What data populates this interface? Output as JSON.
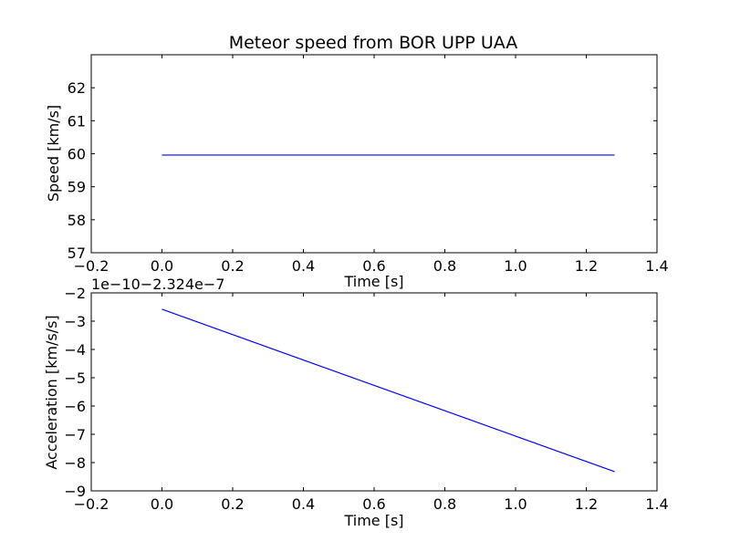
{
  "colors": {
    "line": "#0000ff",
    "axes": "#000000",
    "background": "#ffffff"
  },
  "chart_data": [
    {
      "type": "line",
      "title": "Meteor speed from  BOR UPP UAA",
      "xlabel": "Time [s]",
      "ylabel": "Speed [km/s]",
      "xlim": [
        -0.2,
        1.4
      ],
      "ylim": [
        57,
        63
      ],
      "x_ticks": [
        -0.2,
        0.0,
        0.2,
        0.4,
        0.6,
        0.8,
        1.0,
        1.2,
        1.4
      ],
      "x_tick_labels": [
        "−0.2",
        "0.0",
        "0.2",
        "0.4",
        "0.6",
        "0.8",
        "1.0",
        "1.2",
        "1.4"
      ],
      "y_ticks": [
        57,
        58,
        59,
        60,
        61,
        62
      ],
      "y_tick_labels": [
        "57",
        "58",
        "59",
        "60",
        "61",
        "62"
      ],
      "grid": false,
      "series": [
        {
          "x": [
            0.0,
            1.28
          ],
          "y": [
            59.96,
            59.96
          ]
        }
      ]
    },
    {
      "type": "line",
      "xlabel": "Time [s]",
      "ylabel": "Acceleration [km/s/s]",
      "offset_text": "1e−10−2.324e−7",
      "xlim": [
        -0.2,
        1.4
      ],
      "ylim": [
        -9,
        -2
      ],
      "x_ticks": [
        -0.2,
        0.0,
        0.2,
        0.4,
        0.6,
        0.8,
        1.0,
        1.2,
        1.4
      ],
      "x_tick_labels": [
        "−0.2",
        "0.0",
        "0.2",
        "0.4",
        "0.6",
        "0.8",
        "1.0",
        "1.2",
        "1.4"
      ],
      "y_ticks": [
        -9,
        -8,
        -7,
        -6,
        -5,
        -4,
        -3,
        -2
      ],
      "y_tick_labels": [
        "−9",
        "−8",
        "−7",
        "−6",
        "−5",
        "−4",
        "−3",
        "−2"
      ],
      "grid": false,
      "series": [
        {
          "x": [
            0.0,
            1.28
          ],
          "y": [
            -2.58,
            -8.32
          ]
        }
      ]
    }
  ]
}
